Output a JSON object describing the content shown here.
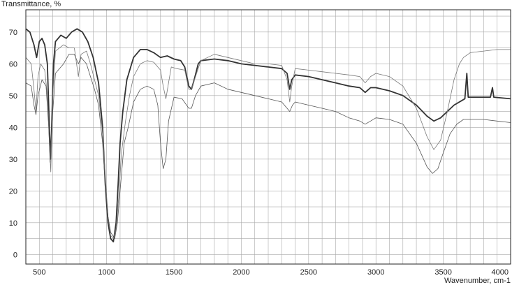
{
  "chart_data": {
    "type": "line",
    "title": "",
    "xlabel": "Wavenumber, cm-1",
    "ylabel": "Transmittance, %",
    "xlim": [
      400,
      4000
    ],
    "ylim": [
      -3,
      77
    ],
    "x_ticks": [
      500,
      1000,
      1500,
      2000,
      2500,
      3000,
      3500,
      4000
    ],
    "y_ticks": [
      0,
      10,
      20,
      30,
      40,
      50,
      60,
      70
    ],
    "grid": true,
    "legend": "none",
    "series": [
      {
        "color": "#333333",
        "points": [
          [
            400,
            71
          ],
          [
            430,
            70
          ],
          [
            460,
            66
          ],
          [
            480,
            62
          ],
          [
            500,
            67
          ],
          [
            520,
            68
          ],
          [
            540,
            66
          ],
          [
            560,
            60
          ],
          [
            575,
            40
          ],
          [
            585,
            30
          ],
          [
            595,
            45
          ],
          [
            605,
            60
          ],
          [
            620,
            67
          ],
          [
            660,
            69
          ],
          [
            700,
            68
          ],
          [
            740,
            70
          ],
          [
            780,
            71
          ],
          [
            820,
            70
          ],
          [
            860,
            67
          ],
          [
            900,
            62
          ],
          [
            940,
            54
          ],
          [
            970,
            40
          ],
          [
            990,
            22
          ],
          [
            1010,
            10
          ],
          [
            1030,
            5
          ],
          [
            1050,
            4
          ],
          [
            1070,
            10
          ],
          [
            1085,
            22
          ],
          [
            1100,
            35
          ],
          [
            1120,
            45
          ],
          [
            1150,
            55
          ],
          [
            1200,
            62
          ],
          [
            1250,
            64.5
          ],
          [
            1300,
            64.5
          ],
          [
            1350,
            63.5
          ],
          [
            1400,
            62
          ],
          [
            1450,
            62.5
          ],
          [
            1500,
            61.5
          ],
          [
            1550,
            61
          ],
          [
            1580,
            59
          ],
          [
            1610,
            53
          ],
          [
            1630,
            52
          ],
          [
            1650,
            55
          ],
          [
            1680,
            60
          ],
          [
            1700,
            61
          ],
          [
            1800,
            61.5
          ],
          [
            1900,
            61
          ],
          [
            2000,
            60
          ],
          [
            2100,
            59.5
          ],
          [
            2200,
            59
          ],
          [
            2300,
            58.5
          ],
          [
            2340,
            57
          ],
          [
            2360,
            52
          ],
          [
            2375,
            55
          ],
          [
            2400,
            56.5
          ],
          [
            2500,
            56
          ],
          [
            2600,
            55
          ],
          [
            2700,
            54
          ],
          [
            2800,
            53
          ],
          [
            2880,
            52.5
          ],
          [
            2920,
            51
          ],
          [
            2960,
            52.5
          ],
          [
            3000,
            52.5
          ],
          [
            3100,
            51.5
          ],
          [
            3200,
            50
          ],
          [
            3300,
            47
          ],
          [
            3380,
            43.5
          ],
          [
            3430,
            42
          ],
          [
            3480,
            43
          ],
          [
            3530,
            45
          ],
          [
            3580,
            47
          ],
          [
            3640,
            48.5
          ],
          [
            3660,
            49
          ],
          [
            3675,
            57
          ],
          [
            3685,
            49.5
          ],
          [
            3750,
            49.5
          ],
          [
            3800,
            49.5
          ],
          [
            3850,
            49.5
          ],
          [
            3865,
            52.5
          ],
          [
            3875,
            49.5
          ],
          [
            3950,
            49.2
          ],
          [
            4000,
            49
          ]
        ]
      },
      {
        "color": "#777777",
        "points": [
          [
            400,
            62
          ],
          [
            440,
            60
          ],
          [
            460,
            52
          ],
          [
            475,
            45
          ],
          [
            490,
            56
          ],
          [
            510,
            60
          ],
          [
            540,
            58
          ],
          [
            560,
            50
          ],
          [
            575,
            35
          ],
          [
            585,
            26
          ],
          [
            600,
            50
          ],
          [
            620,
            64
          ],
          [
            680,
            66
          ],
          [
            720,
            65
          ],
          [
            760,
            65
          ],
          [
            790,
            56
          ],
          [
            810,
            63
          ],
          [
            850,
            64
          ],
          [
            880,
            60
          ],
          [
            910,
            55
          ],
          [
            940,
            50
          ],
          [
            970,
            38
          ],
          [
            990,
            25
          ],
          [
            1010,
            12
          ],
          [
            1030,
            6
          ],
          [
            1050,
            5
          ],
          [
            1070,
            8
          ],
          [
            1090,
            18
          ],
          [
            1110,
            32
          ],
          [
            1140,
            42
          ],
          [
            1170,
            50
          ],
          [
            1200,
            56
          ],
          [
            1250,
            60
          ],
          [
            1300,
            61
          ],
          [
            1350,
            60.5
          ],
          [
            1400,
            58
          ],
          [
            1420,
            53
          ],
          [
            1440,
            49
          ],
          [
            1460,
            54
          ],
          [
            1480,
            59
          ],
          [
            1520,
            58.5
          ],
          [
            1580,
            58
          ],
          [
            1610,
            52
          ],
          [
            1630,
            52
          ],
          [
            1660,
            56
          ],
          [
            1700,
            61
          ],
          [
            1800,
            63
          ],
          [
            1900,
            62
          ],
          [
            2000,
            61
          ],
          [
            2100,
            60
          ],
          [
            2200,
            60
          ],
          [
            2300,
            59.5
          ],
          [
            2340,
            55
          ],
          [
            2360,
            48
          ],
          [
            2375,
            53
          ],
          [
            2400,
            58.5
          ],
          [
            2500,
            58
          ],
          [
            2600,
            57.5
          ],
          [
            2700,
            57
          ],
          [
            2800,
            56.5
          ],
          [
            2880,
            56
          ],
          [
            2920,
            54
          ],
          [
            2960,
            56
          ],
          [
            3000,
            57
          ],
          [
            3100,
            56
          ],
          [
            3200,
            53
          ],
          [
            3300,
            46
          ],
          [
            3380,
            37
          ],
          [
            3430,
            33
          ],
          [
            3480,
            36
          ],
          [
            3530,
            45
          ],
          [
            3580,
            55
          ],
          [
            3620,
            60
          ],
          [
            3650,
            62
          ],
          [
            3700,
            63.5
          ],
          [
            3800,
            64
          ],
          [
            3900,
            64.5
          ],
          [
            4000,
            64.5
          ]
        ]
      },
      {
        "color": "#555555",
        "points": [
          [
            400,
            54
          ],
          [
            440,
            53
          ],
          [
            460,
            47
          ],
          [
            475,
            44
          ],
          [
            490,
            50
          ],
          [
            520,
            55
          ],
          [
            550,
            53
          ],
          [
            570,
            40
          ],
          [
            580,
            29
          ],
          [
            595,
            42
          ],
          [
            620,
            57
          ],
          [
            680,
            60
          ],
          [
            720,
            63
          ],
          [
            760,
            63
          ],
          [
            790,
            60
          ],
          [
            810,
            62
          ],
          [
            850,
            60
          ],
          [
            880,
            56
          ],
          [
            910,
            52
          ],
          [
            940,
            47
          ],
          [
            970,
            35
          ],
          [
            990,
            22
          ],
          [
            1010,
            12
          ],
          [
            1030,
            7
          ],
          [
            1060,
            5
          ],
          [
            1080,
            10
          ],
          [
            1100,
            20
          ],
          [
            1130,
            35
          ],
          [
            1160,
            40
          ],
          [
            1200,
            48
          ],
          [
            1250,
            52
          ],
          [
            1300,
            53
          ],
          [
            1350,
            52
          ],
          [
            1380,
            47
          ],
          [
            1400,
            35
          ],
          [
            1420,
            27
          ],
          [
            1440,
            30
          ],
          [
            1460,
            42
          ],
          [
            1500,
            49.5
          ],
          [
            1560,
            49
          ],
          [
            1610,
            46
          ],
          [
            1630,
            46
          ],
          [
            1660,
            50
          ],
          [
            1700,
            53
          ],
          [
            1800,
            54
          ],
          [
            1900,
            52
          ],
          [
            2000,
            51
          ],
          [
            2100,
            50
          ],
          [
            2200,
            49
          ],
          [
            2300,
            48
          ],
          [
            2340,
            46
          ],
          [
            2360,
            45
          ],
          [
            2380,
            47
          ],
          [
            2400,
            48
          ],
          [
            2500,
            47
          ],
          [
            2600,
            46
          ],
          [
            2700,
            45
          ],
          [
            2800,
            43
          ],
          [
            2880,
            42
          ],
          [
            2920,
            41
          ],
          [
            2960,
            42
          ],
          [
            3000,
            43
          ],
          [
            3100,
            42.5
          ],
          [
            3200,
            41
          ],
          [
            3300,
            35
          ],
          [
            3380,
            27.5
          ],
          [
            3420,
            25.5
          ],
          [
            3460,
            27
          ],
          [
            3500,
            32
          ],
          [
            3550,
            38
          ],
          [
            3600,
            41
          ],
          [
            3650,
            42.5
          ],
          [
            3700,
            42.5
          ],
          [
            3800,
            42.5
          ],
          [
            3900,
            42
          ],
          [
            4000,
            41.5
          ]
        ]
      }
    ]
  }
}
